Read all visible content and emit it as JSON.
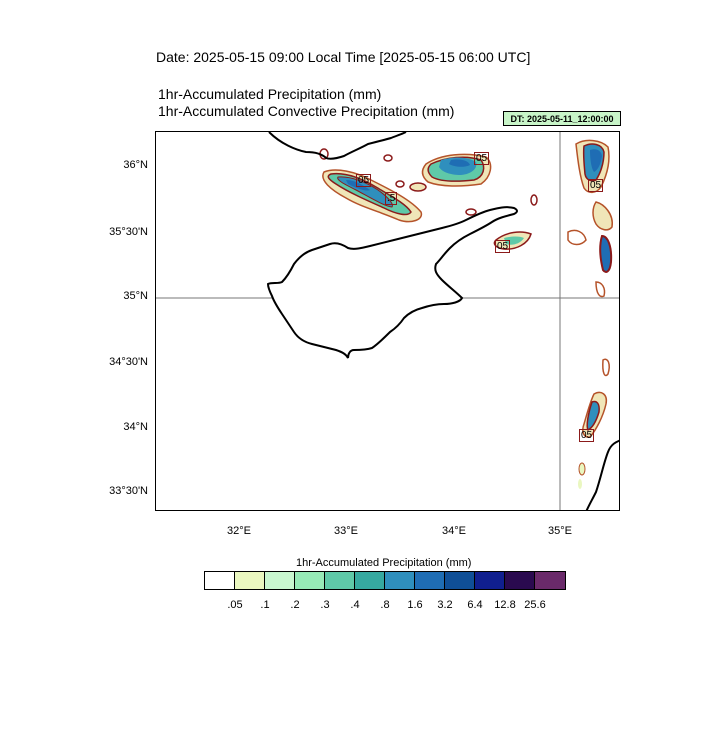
{
  "title": "Date: 2025-05-15  09:00 Local Time [2025-05-15  06:00 UTC]",
  "subtitle_1": "1hr-Accumulated Precipitation   (mm)",
  "subtitle_2": "1hr-Accumulated Convective Precipitation   (mm)",
  "dt_badge": "DT: 2025-05-11_12:00:00",
  "lat_labels": [
    "36°N",
    "35°30'N",
    "35°N",
    "34°30'N",
    "34°N",
    "33°30'N"
  ],
  "lon_labels": [
    "32°E",
    "33°E",
    "34°E",
    "35°E"
  ],
  "contour_labels": [
    "05",
    ".5",
    "05",
    "05",
    "05",
    "05"
  ],
  "legend": {
    "title": "1hr-Accumulated Precipitation  (mm)",
    "levels": [
      ".05",
      ".1",
      ".2",
      ".3",
      ".4",
      ".8",
      "1.6",
      "3.2",
      "6.4",
      "12.8",
      "25.6"
    ],
    "colors": [
      "#ffffff",
      "#eaf7c0",
      "#c9f7d0",
      "#97eab7",
      "#5fc9a8",
      "#36a9a0",
      "#2f8fbd",
      "#1f6db4",
      "#0f4f97",
      "#101f8f",
      "#2a0a4f",
      "#6a2a6a"
    ]
  }
}
